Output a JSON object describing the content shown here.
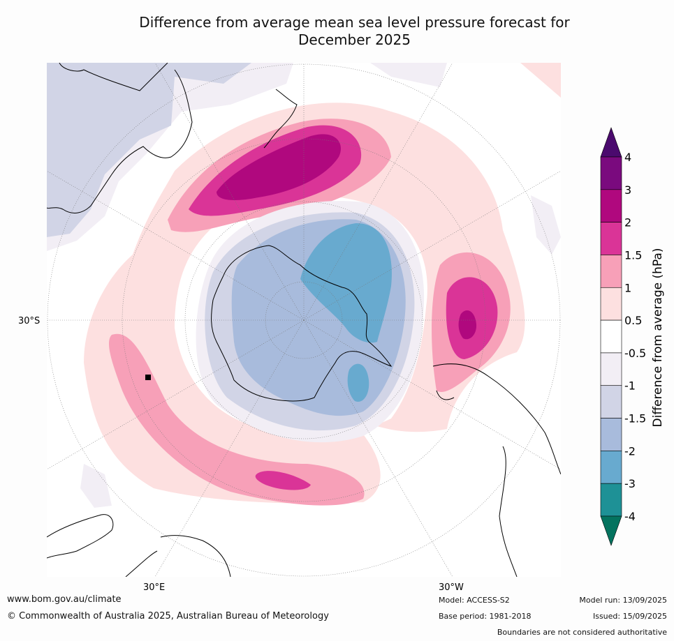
{
  "title": {
    "line1": "Difference from average mean sea level pressure forecast for",
    "line2": "December 2025"
  },
  "map": {
    "projection": "south-polar-stereographic",
    "lat_labels": [
      "30°S"
    ],
    "lon_labels": [
      "30°E",
      "30°W"
    ]
  },
  "colorbar": {
    "label": "Difference from average (hPa)",
    "ticks": [
      "4",
      "3",
      "2",
      "1.5",
      "1",
      "0.5",
      "-0.5",
      "-1",
      "-1.5",
      "-2",
      "-3",
      "-4"
    ],
    "colors": [
      "#4b0a6e",
      "#7a0a7e",
      "#b0087e",
      "#da3497",
      "#f7a0b8",
      "#fde0e0",
      "#ffffff",
      "#f2eef5",
      "#d1d4e6",
      "#a8bbdc",
      "#68aacf",
      "#1e9196",
      "#04735f"
    ]
  },
  "footer": {
    "url": "www.bom.gov.au/climate",
    "copyright": "© Commonwealth of Australia 2025, Australian Bureau of Meteorology",
    "model": "Model: ACCESS-S2",
    "base_period": "Base period: 1981-2018",
    "model_run": "Model run: 13/09/2025",
    "issued": "Issued: 15/09/2025",
    "disclaimer": "Boundaries are not considered authoritative"
  }
}
